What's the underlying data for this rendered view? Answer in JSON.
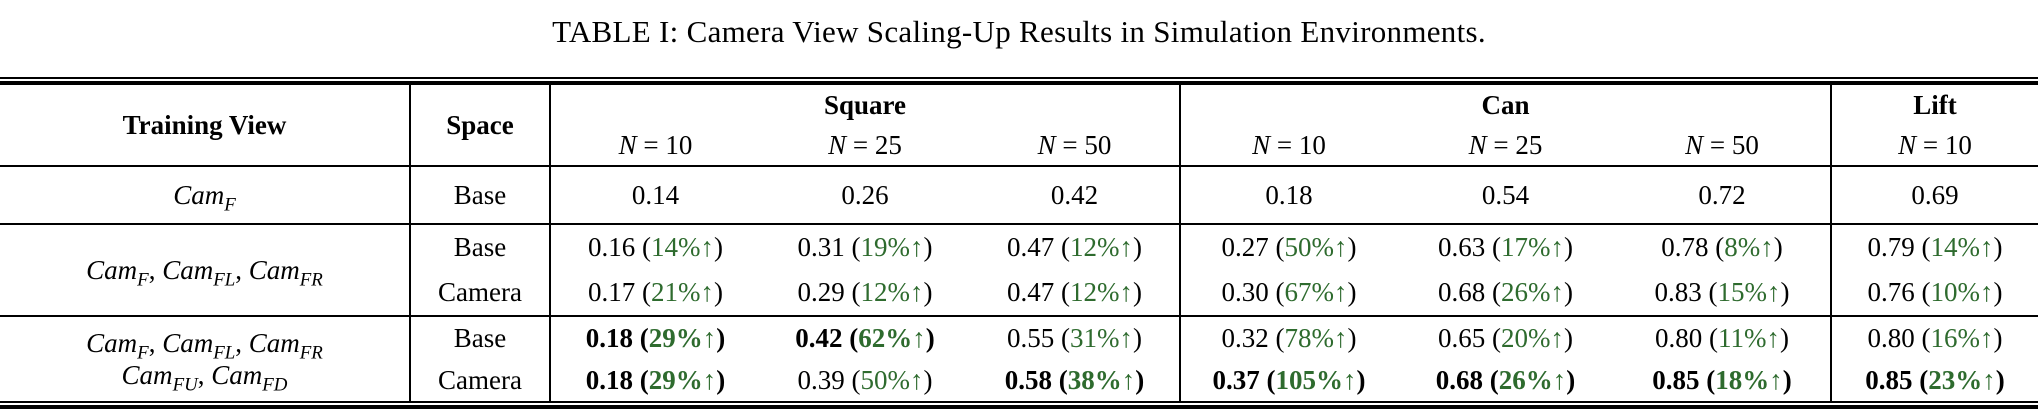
{
  "title": "TABLE I: Camera View Scaling-Up Results in Simulation Environments.",
  "colors": {
    "text": "#000000",
    "improvement_green": "#2e6b2e",
    "background": "#ffffff"
  },
  "table": {
    "header": {
      "training_view": "Training View",
      "space": "Space",
      "groups": [
        {
          "label": "Square",
          "cols": [
            "N = 10",
            "N = 25",
            "N = 50"
          ]
        },
        {
          "label": "Can",
          "cols": [
            "N = 10",
            "N = 25",
            "N = 50"
          ]
        },
        {
          "label": "Lift",
          "cols": [
            "N = 10"
          ]
        }
      ]
    },
    "blocks": [
      {
        "training_view_lines": [
          "Cam_F"
        ],
        "rows": [
          {
            "space": "Base",
            "cells": [
              {
                "v": "0.14"
              },
              {
                "v": "0.26"
              },
              {
                "v": "0.42"
              },
              {
                "v": "0.18"
              },
              {
                "v": "0.54"
              },
              {
                "v": "0.72"
              },
              {
                "v": "0.69"
              }
            ]
          }
        ]
      },
      {
        "training_view_lines": [
          "Cam_F, Cam_FL, Cam_FR"
        ],
        "rows": [
          {
            "space": "Base",
            "cells": [
              {
                "v": "0.16",
                "p": "14%↑"
              },
              {
                "v": "0.31",
                "p": "19%↑"
              },
              {
                "v": "0.47",
                "p": "12%↑"
              },
              {
                "v": "0.27",
                "p": "50%↑"
              },
              {
                "v": "0.63",
                "p": "17%↑"
              },
              {
                "v": "0.78",
                "p": "8%↑"
              },
              {
                "v": "0.79",
                "p": "14%↑"
              }
            ]
          },
          {
            "space": "Camera",
            "cells": [
              {
                "v": "0.17",
                "p": "21%↑"
              },
              {
                "v": "0.29",
                "p": "12%↑"
              },
              {
                "v": "0.47",
                "p": "12%↑"
              },
              {
                "v": "0.30",
                "p": "67%↑"
              },
              {
                "v": "0.68",
                "p": "26%↑"
              },
              {
                "v": "0.83",
                "p": "15%↑"
              },
              {
                "v": "0.76",
                "p": "10%↑"
              }
            ]
          }
        ]
      },
      {
        "training_view_lines": [
          "Cam_F, Cam_FL, Cam_FR",
          "Cam_FU, Cam_FD"
        ],
        "rows": [
          {
            "space": "Base",
            "cells": [
              {
                "v": "0.18",
                "p": "29%↑",
                "bold": true
              },
              {
                "v": "0.42",
                "p": "62%↑",
                "bold": true
              },
              {
                "v": "0.55",
                "p": "31%↑"
              },
              {
                "v": "0.32",
                "p": "78%↑"
              },
              {
                "v": "0.65",
                "p": "20%↑"
              },
              {
                "v": "0.80",
                "p": "11%↑"
              },
              {
                "v": "0.80",
                "p": "16%↑"
              }
            ]
          },
          {
            "space": "Camera",
            "cells": [
              {
                "v": "0.18",
                "p": "29%↑",
                "bold": true
              },
              {
                "v": "0.39",
                "p": "50%↑"
              },
              {
                "v": "0.58",
                "p": "38%↑",
                "bold": true
              },
              {
                "v": "0.37",
                "p": "105%↑",
                "bold": true
              },
              {
                "v": "0.68",
                "p": "26%↑",
                "bold": true
              },
              {
                "v": "0.85",
                "p": "18%↑",
                "bold": true
              },
              {
                "v": "0.85",
                "p": "23%↑",
                "bold": true
              }
            ]
          }
        ]
      }
    ]
  }
}
